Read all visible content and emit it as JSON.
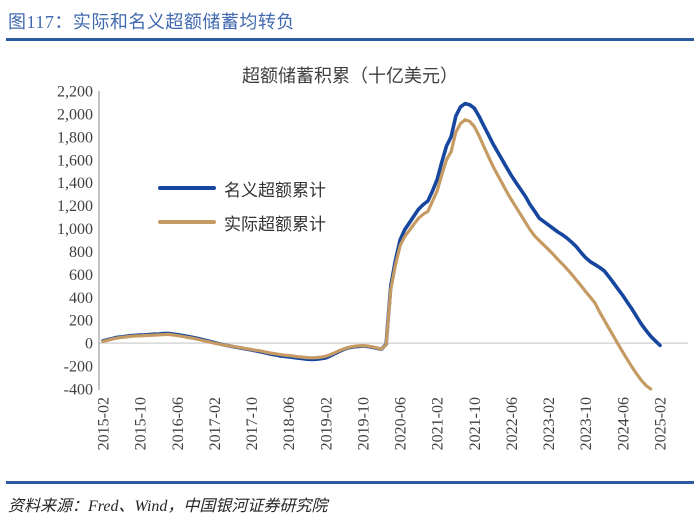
{
  "figure": {
    "header_title": "图117：实际和名义超额储蓄均转负",
    "source": "资料来源：Fred、Wind，中国银河证券研究院"
  },
  "colors": {
    "header_blue": "#4169B0",
    "rule_blue": "#2E5AA0",
    "nominal_line": "#16469D",
    "real_line": "#C59B63",
    "axis_gray": "#ABABAB",
    "gridline_gray": "#D6D6D6",
    "tick_text": "#404040"
  },
  "chart_data": {
    "type": "line",
    "title": "超额储蓄积累（十亿美元）",
    "xlabel": "",
    "ylabel": "",
    "ylim": [
      -400,
      2200
    ],
    "ytick_step": 200,
    "grid": "zero-line-only",
    "legend_position": "upper-left-inside",
    "ytick_labels": [
      "2,200",
      "2,000",
      "1,800",
      "1,600",
      "1,400",
      "1,200",
      "1,000",
      "800",
      "600",
      "400",
      "200",
      "0",
      "-200",
      "-400"
    ],
    "ytick_values": [
      2200,
      2000,
      1800,
      1600,
      1400,
      1200,
      1000,
      800,
      600,
      400,
      200,
      0,
      -200,
      -400
    ],
    "xtick_labels": [
      "2015-02",
      "2015-10",
      "2016-06",
      "2017-02",
      "2017-10",
      "2018-06",
      "2019-02",
      "2019-10",
      "2020-06",
      "2021-02",
      "2021-10",
      "2022-06",
      "2023-02",
      "2023-10",
      "2024-06",
      "2025-02"
    ],
    "x_range_months": [
      "2015-02",
      "2025-02"
    ],
    "legend": [
      {
        "name": "名义超额累计",
        "color": "#16469D"
      },
      {
        "name": "实际超额累计",
        "color": "#C59B63"
      }
    ],
    "series": [
      {
        "name": "名义超额累计",
        "color": "#16469D",
        "stroke_width": 3.6,
        "start": "2015-02",
        "freq": "monthly",
        "values": [
          20,
          30,
          40,
          50,
          55,
          60,
          65,
          68,
          70,
          72,
          75,
          78,
          80,
          83,
          85,
          80,
          75,
          68,
          60,
          52,
          45,
          35,
          25,
          15,
          5,
          -5,
          -15,
          -22,
          -30,
          -38,
          -45,
          -52,
          -60,
          -68,
          -75,
          -85,
          -95,
          -102,
          -110,
          -115,
          -120,
          -125,
          -130,
          -135,
          -140,
          -142,
          -140,
          -135,
          -128,
          -110,
          -90,
          -70,
          -52,
          -40,
          -32,
          -28,
          -25,
          -28,
          -35,
          -45,
          -52,
          -10,
          500,
          720,
          900,
          990,
          1050,
          1110,
          1170,
          1210,
          1240,
          1330,
          1430,
          1580,
          1720,
          1800,
          1980,
          2060,
          2090,
          2080,
          2050,
          1980,
          1900,
          1820,
          1740,
          1670,
          1600,
          1530,
          1460,
          1400,
          1340,
          1280,
          1210,
          1150,
          1090,
          1060,
          1030,
          1000,
          970,
          945,
          915,
          880,
          840,
          790,
          745,
          710,
          685,
          660,
          630,
          580,
          525,
          470,
          415,
          355,
          295,
          230,
          165,
          110,
          60,
          20,
          -20
        ]
      },
      {
        "name": "实际超额累计",
        "color": "#C59B63",
        "stroke_width": 3.2,
        "start": "2015-02",
        "freq": "monthly",
        "values": [
          15,
          25,
          35,
          44,
          50,
          55,
          60,
          62,
          64,
          66,
          68,
          70,
          72,
          75,
          76,
          72,
          66,
          60,
          52,
          45,
          38,
          28,
          18,
          10,
          0,
          -8,
          -16,
          -22,
          -28,
          -35,
          -42,
          -48,
          -55,
          -62,
          -68,
          -78,
          -86,
          -92,
          -98,
          -104,
          -108,
          -113,
          -118,
          -122,
          -126,
          -128,
          -126,
          -122,
          -115,
          -100,
          -82,
          -64,
          -48,
          -36,
          -28,
          -24,
          -22,
          -25,
          -32,
          -42,
          -50,
          -15,
          470,
          680,
          850,
          930,
          985,
          1040,
          1090,
          1125,
          1150,
          1240,
          1330,
          1470,
          1600,
          1670,
          1840,
          1915,
          1950,
          1935,
          1890,
          1810,
          1720,
          1630,
          1545,
          1470,
          1395,
          1320,
          1250,
          1185,
          1120,
          1055,
          990,
          935,
          895,
          855,
          815,
          775,
          730,
          690,
          645,
          600,
          550,
          500,
          450,
          400,
          350,
          270,
          200,
          130,
          60,
          -10,
          -80,
          -145,
          -210,
          -270,
          -325,
          -370,
          -400
        ]
      }
    ]
  }
}
